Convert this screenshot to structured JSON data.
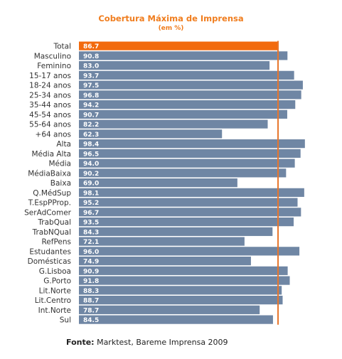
{
  "chart_data": {
    "type": "bar",
    "orientation": "horizontal",
    "title": "Cobertura Máxima de Imprensa",
    "subtitle": "(em %)",
    "categories": [
      "Total",
      "Masculino",
      "Feminino",
      "15-17 anos",
      "18-24 anos",
      "25-34 anos",
      "35-44 anos",
      "45-54 anos",
      "55-64 anos",
      "+64 anos",
      "Alta",
      "Média Alta",
      "Média",
      "MédiaBaixa",
      "Baixa",
      "Q.MédSup",
      "T.EspPProp.",
      "SerAdComer",
      "TrabQual",
      "TrabNQual",
      "RefPens",
      "Estudantes",
      "Domésticas",
      "G.Lisboa",
      "G.Porto",
      "Lit.Norte",
      "Lit.Centro",
      "Int.Norte",
      "Sul"
    ],
    "values": [
      86.7,
      90.8,
      83.0,
      93.7,
      97.5,
      96.8,
      94.2,
      90.7,
      82.2,
      62.3,
      98.4,
      96.5,
      94.0,
      90.2,
      69.0,
      98.1,
      95.2,
      96.7,
      93.5,
      84.3,
      72.1,
      96.0,
      74.9,
      90.9,
      91.8,
      88.3,
      88.7,
      78.7,
      84.5
    ],
    "value_labels": [
      "86.7",
      "90.8",
      "83.0",
      "93.7",
      "97.5",
      "96.8",
      "94.2",
      "90.7",
      "82.2",
      "62.3",
      "98.4",
      "96.5",
      "94.0",
      "90.2",
      "69.0",
      "98.1",
      "95.2",
      "96.7",
      "93.5",
      "84.3",
      "72.1",
      "96.0",
      "74.9",
      "90.9",
      "91.8",
      "88.3",
      "88.7",
      "78.7",
      "84.5"
    ],
    "highlight_index": 0,
    "reference_value": 86.7,
    "colors": {
      "bar": "#6f86a4",
      "highlight": "#f26a0d",
      "reference_line": "#e8762c",
      "title": "#f07d1e"
    },
    "xlim": [
      0,
      100
    ],
    "grid": false,
    "legend": "none"
  },
  "footer": {
    "label": "Fonte:",
    "text": " Marktest, Bareme Imprensa 2009"
  }
}
